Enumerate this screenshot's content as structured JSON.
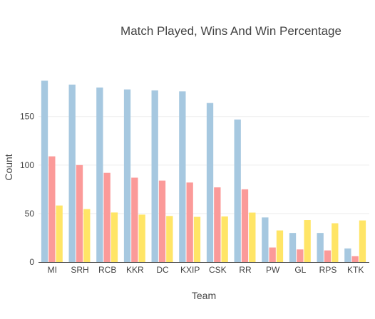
{
  "chart_data": {
    "type": "bar",
    "title": "Match Played, Wins And Win Percentage",
    "xlabel": "Team",
    "ylabel": "Count",
    "categories": [
      "MI",
      "SRH",
      "RCB",
      "KKR",
      "DC",
      "KXIP",
      "CSK",
      "RR",
      "PW",
      "GL",
      "RPS",
      "KTK"
    ],
    "series": [
      {
        "values": [
          187,
          183,
          180,
          178,
          177,
          176,
          164,
          147,
          46,
          30,
          30,
          14
        ],
        "color": "#a6c8e0"
      },
      {
        "values": [
          109,
          100,
          92,
          87,
          84,
          82,
          77,
          75,
          15,
          13,
          12,
          6
        ],
        "color": "#fb9a99"
      },
      {
        "values": [
          58.3,
          54.6,
          51.1,
          48.9,
          47.5,
          46.6,
          47.0,
          51.0,
          32.6,
          43.3,
          40.0,
          42.9
        ],
        "color": "#ffe566"
      }
    ],
    "ylim": [
      0,
      196.8
    ],
    "yticks": [
      0,
      50,
      100,
      150
    ],
    "grid": true,
    "legend": "none"
  }
}
